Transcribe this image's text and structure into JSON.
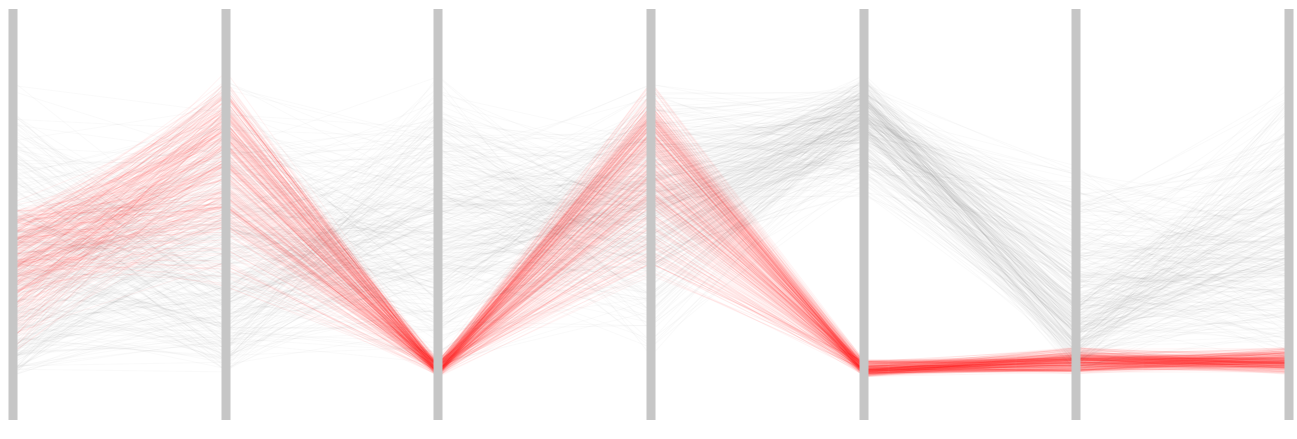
{
  "chart_data": {
    "type": "parallel-coordinates",
    "axis_count": 7,
    "value_range": [
      0,
      1
    ],
    "axis_color": "#c6c6c6",
    "series": [
      {
        "group": "highlighted",
        "color": "#ff2020",
        "opacity": 0.05,
        "count": 320,
        "profile": [
          [
            0.05,
            0.42,
            0.55
          ],
          [
            0.25,
            0.8,
            0.95
          ],
          [
            0.0,
            0.02,
            0.06
          ],
          [
            0.25,
            0.8,
            0.95
          ],
          [
            0.0,
            0.02,
            0.06
          ],
          [
            0.01,
            0.05,
            0.1
          ],
          [
            0.01,
            0.05,
            0.1
          ]
        ]
      },
      {
        "group": "background",
        "color": "#7a7a7a",
        "opacity": 0.04,
        "count": 320,
        "profile": [
          [
            0.0,
            0.02,
            0.95
          ],
          [
            0.0,
            0.1,
            0.95
          ],
          [
            0.0,
            0.55,
            0.95
          ],
          [
            0.05,
            0.55,
            0.95
          ],
          [
            0.55,
            0.85,
            0.95
          ],
          [
            0.0,
            0.1,
            0.7
          ],
          [
            0.0,
            0.4,
            0.95
          ]
        ]
      }
    ]
  }
}
